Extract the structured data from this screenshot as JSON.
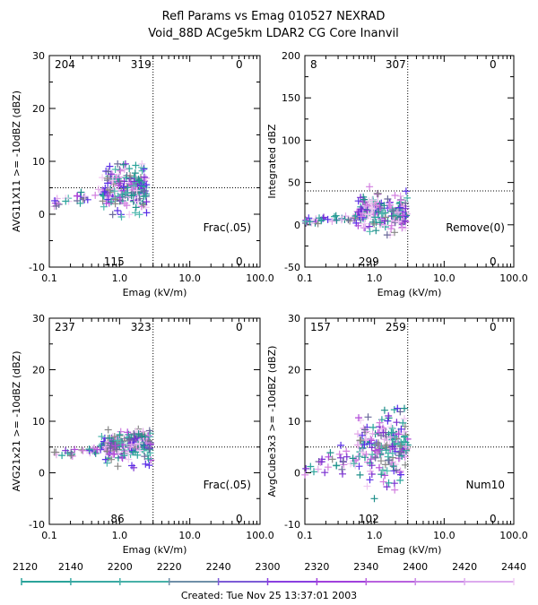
{
  "header": {
    "title_line1": "Refl Params vs Emag   010527  NEXRAD",
    "title_line2": "Void_88D ACge5km LDAR2 CG Core Inanvil"
  },
  "footer": {
    "created": "Created: Tue Nov 25 13:37:01 2003"
  },
  "colors": {
    "axis": "#000000",
    "palette": [
      "#2aa39a",
      "#1f8f8a",
      "#4fb7ae",
      "#6a6a9a",
      "#5a2fe6",
      "#7a2fd0",
      "#b04ad8",
      "#d27fe0",
      "#e3a9ea",
      "#f0c9f2",
      "#888888"
    ]
  },
  "colorbar": {
    "labels": [
      "2120",
      "2140",
      "2200",
      "2220",
      "2240",
      "2300",
      "2320",
      "2340",
      "2400",
      "2420",
      "2440"
    ],
    "colors": [
      "#2aa39a",
      "#3aa9a3",
      "#47b1a8",
      "#6e8fa8",
      "#7c5bd6",
      "#8a3fe0",
      "#a040dc",
      "#b862de",
      "#c987e6",
      "#dcaaee",
      "#f0cdf3"
    ]
  },
  "chart_data": [
    {
      "type": "scatter",
      "id": "p1",
      "xlabel": "Emag (kV/m)",
      "ylabel": "AVG11X11 >= -10dBZ (dBZ)",
      "xscale": "log",
      "xlim": [
        0.1,
        100.0
      ],
      "ylim": [
        -10,
        30
      ],
      "xticks": [
        "0.1",
        "1.0",
        "10.0",
        "100.0"
      ],
      "yticks": [
        "-10",
        "0",
        "10",
        "20",
        "30"
      ],
      "ref_x": 3.0,
      "ref_y": 5,
      "corner_counts": {
        "top_left": "204",
        "top_mid": "319",
        "top_right": "0",
        "bottom_mid": "115",
        "bottom_right": "0"
      },
      "annotation": "Frac(.05)",
      "cluster": {
        "xmin": 0.1,
        "xmax": 2.5,
        "ymin": -2,
        "ymax": 9.5,
        "center_y": 5
      }
    },
    {
      "type": "scatter",
      "id": "p2",
      "xlabel": "Emag (kV/m)",
      "ylabel": "Integrated dBZ",
      "xscale": "log",
      "xlim": [
        0.1,
        100.0
      ],
      "ylim": [
        -50,
        200
      ],
      "xticks": [
        "0.1",
        "1.0",
        "10.0",
        "100.0"
      ],
      "yticks": [
        "-50",
        "0",
        "50",
        "100",
        "150",
        "200"
      ],
      "ref_x": 3.0,
      "ref_y": 40,
      "corner_counts": {
        "top_left": "8",
        "top_mid": "307",
        "top_right": "0",
        "bottom_mid": "299",
        "bottom_right": "0"
      },
      "annotation": "Remove(0)",
      "cluster": {
        "xmin": 0.1,
        "xmax": 3.0,
        "ymin": -12,
        "ymax": 45,
        "center_y": 15
      }
    },
    {
      "type": "scatter",
      "id": "p3",
      "xlabel": "Emag (kV/m)",
      "ylabel": "AVG21x21 >= -10dBZ (dBZ)",
      "xscale": "log",
      "xlim": [
        0.1,
        100.0
      ],
      "ylim": [
        -10,
        30
      ],
      "xticks": [
        "0.1",
        "1.0",
        "10.0",
        "100.0"
      ],
      "yticks": [
        "-10",
        "0",
        "10",
        "20",
        "30"
      ],
      "ref_x": 3.0,
      "ref_y": 5,
      "corner_counts": {
        "top_left": "237",
        "top_mid": "323",
        "top_right": "0",
        "bottom_mid": "86",
        "bottom_right": "0"
      },
      "annotation": "Frac(.05)",
      "cluster": {
        "xmin": 0.1,
        "xmax": 2.8,
        "ymin": 1,
        "ymax": 9,
        "center_y": 5.5
      }
    },
    {
      "type": "scatter",
      "id": "p4",
      "xlabel": "Emag (kV/m)",
      "ylabel": "AvgCube3x3 >= -10dBZ (dBZ)",
      "xscale": "log",
      "xlim": [
        0.1,
        100.0
      ],
      "ylim": [
        -10,
        30
      ],
      "xticks": [
        "0.1",
        "1.0",
        "10.0",
        "100.0"
      ],
      "yticks": [
        "-10",
        "0",
        "10",
        "20",
        "30"
      ],
      "ref_x": 3.0,
      "ref_y": 5,
      "corner_counts": {
        "top_left": "157",
        "top_mid": "259",
        "top_right": "0",
        "bottom_mid": "102",
        "bottom_right": "0"
      },
      "annotation": "Num10",
      "cluster": {
        "xmin": 0.1,
        "xmax": 3.0,
        "ymin": -5,
        "ymax": 12.5,
        "center_y": 5
      }
    }
  ]
}
